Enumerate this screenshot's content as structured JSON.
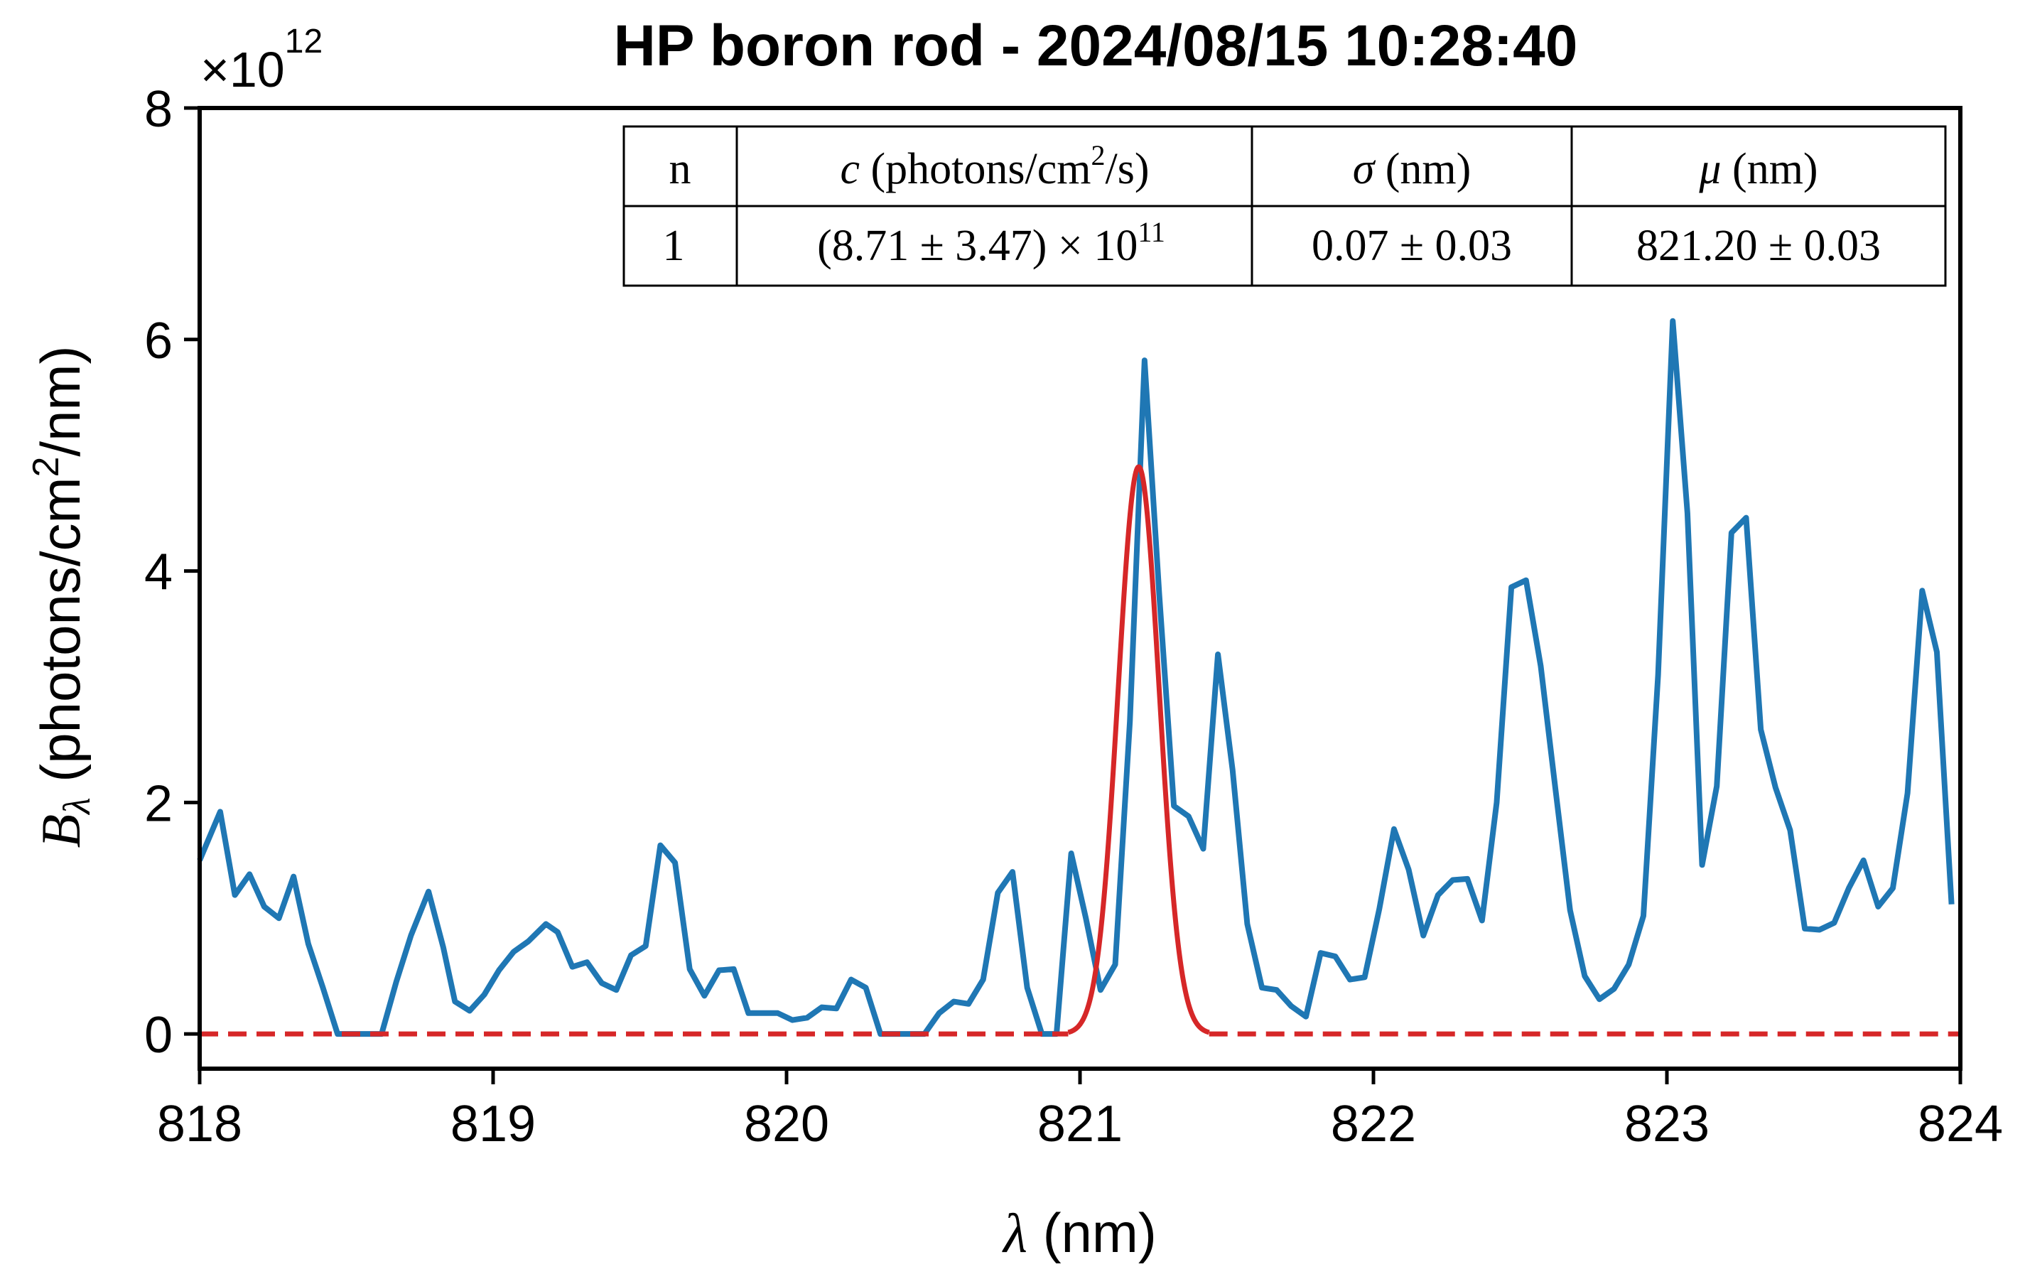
{
  "chart_data": {
    "type": "line",
    "title": "HP boron rod - 2024/08/15 10:28:40",
    "xlabel_symbol": "λ",
    "xlabel_unit": " (nm)",
    "ylabel_symbol": "B",
    "ylabel_subscript": "λ",
    "ylabel_unit_pre": " (photons/cm",
    "ylabel_unit_sup": "2",
    "ylabel_unit_post": "/nm)",
    "y_multiplier_base": "×10",
    "y_multiplier_exp": "12",
    "xlim": [
      818,
      824
    ],
    "ylim": [
      -0.3,
      8
    ],
    "y_scale_factor": 1000000000000.0,
    "x_ticks": [
      818,
      819,
      820,
      821,
      822,
      823,
      824
    ],
    "x_tick_labels": [
      "818",
      "819",
      "820",
      "821",
      "822",
      "823",
      "824"
    ],
    "y_ticks": [
      0,
      2,
      4,
      6,
      8
    ],
    "y_tick_labels": [
      "0",
      "2",
      "4",
      "6",
      "8"
    ],
    "grid": false,
    "series": [
      {
        "style": "solid",
        "color": "#1f77b4",
        "x": [
          818.0,
          818.07,
          818.12,
          818.17,
          818.22,
          818.27,
          818.32,
          818.37,
          818.42,
          818.47,
          818.52,
          818.57,
          818.62,
          818.67,
          818.72,
          818.78,
          818.83,
          818.87,
          818.92,
          818.97,
          819.02,
          819.07,
          819.12,
          819.18,
          819.22,
          819.27,
          819.32,
          819.37,
          819.42,
          819.47,
          819.52,
          819.57,
          819.62,
          819.67,
          819.72,
          819.77,
          819.82,
          819.87,
          819.92,
          819.97,
          820.02,
          820.07,
          820.12,
          820.17,
          820.22,
          820.27,
          820.32,
          820.37,
          820.42,
          820.47,
          820.52,
          820.57,
          820.62,
          820.67,
          820.72,
          820.77,
          820.82,
          820.87,
          820.92,
          820.97,
          821.02,
          821.07,
          821.12,
          821.17,
          821.22,
          821.27,
          821.32,
          821.37,
          821.42,
          821.47,
          821.52,
          821.57,
          821.62,
          821.67,
          821.72,
          821.77,
          821.82,
          821.87,
          821.92,
          821.97,
          822.02,
          822.07,
          822.12,
          822.17,
          822.22,
          822.27,
          822.32,
          822.37,
          822.42,
          822.47,
          822.52,
          822.57,
          822.62,
          822.67,
          822.72,
          822.77,
          822.82,
          822.87,
          822.92,
          822.97,
          823.02,
          823.07,
          823.12,
          823.17,
          823.22,
          823.27,
          823.32,
          823.37,
          823.42,
          823.47,
          823.52,
          823.57,
          823.62,
          823.67,
          823.72,
          823.77,
          823.82,
          823.87,
          823.92,
          823.97
        ],
        "y": [
          1.5,
          1.92,
          1.2,
          1.38,
          1.1,
          1.0,
          1.36,
          0.78,
          0.4,
          0.0,
          0.0,
          0.0,
          0.0,
          0.45,
          0.85,
          1.23,
          0.75,
          0.28,
          0.2,
          0.34,
          0.55,
          0.71,
          0.8,
          0.95,
          0.88,
          0.58,
          0.62,
          0.44,
          0.38,
          0.68,
          0.76,
          1.63,
          1.48,
          0.56,
          0.33,
          0.55,
          0.56,
          0.18,
          0.18,
          0.18,
          0.12,
          0.14,
          0.23,
          0.22,
          0.47,
          0.4,
          0.0,
          0.0,
          0.0,
          0.0,
          0.18,
          0.28,
          0.26,
          0.47,
          1.22,
          1.4,
          0.4,
          0.0,
          0.0,
          1.56,
          1.0,
          0.38,
          0.6,
          2.7,
          5.82,
          3.8,
          1.97,
          1.88,
          1.6,
          3.28,
          2.28,
          0.95,
          0.4,
          0.38,
          0.24,
          0.15,
          0.7,
          0.67,
          0.47,
          0.49,
          1.08,
          1.77,
          1.42,
          0.85,
          1.2,
          1.33,
          1.34,
          0.98,
          2.0,
          3.86,
          3.92,
          3.18,
          2.12,
          1.07,
          0.5,
          0.3,
          0.39,
          0.6,
          1.02,
          3.1,
          6.16,
          4.5,
          1.46,
          2.14,
          4.33,
          4.46,
          2.63,
          2.13,
          1.76,
          0.91,
          0.9,
          0.96,
          1.26,
          1.5,
          1.1,
          1.26,
          2.08,
          3.83,
          3.3,
          1.12
        ]
      },
      {
        "style": "dashed-with-solid-fit",
        "color": "#d62728",
        "model": "gaussian",
        "amplitude": 4.9,
        "mu": 821.2,
        "sigma": 0.07,
        "solid_range": [
          820.96,
          821.44
        ]
      }
    ],
    "table": {
      "headers": [
        "n",
        "c (photons/cm2/s)",
        "σ (nm)",
        "μ (nm)"
      ],
      "rows": [
        [
          "1",
          "(8.71 ± 3.47) × 10^11",
          "0.07 ± 0.03",
          "821.20 ± 0.03"
        ]
      ],
      "placement": "top-right"
    }
  }
}
